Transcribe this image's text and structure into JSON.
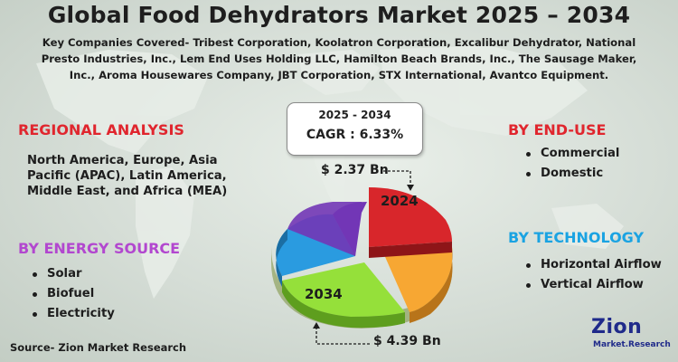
{
  "title": "Global Food Dehydrators Market 2025 – 2034",
  "companies": "Key Companies Covered- Tribest Corporation, Koolatron Corporation, Excalibur Dehydrator, National Presto Industries, Inc., Lem End Uses Holding LLC, Hamilton Beach Brands, Inc., The Sausage Maker, Inc., Aroma Housewares Company, JBT Corporation, STX International, Avantco Equipment.",
  "highlight": {
    "period": "2025 - 2034",
    "cagr": "CAGR : 6.33%"
  },
  "regional": {
    "heading": "REGIONAL ANALYSIS",
    "text": "North America, Europe, Asia Pacific (APAC), Latin America, Middle East, and Africa (MEA)"
  },
  "energy_source": {
    "heading": "BY ENERGY SOURCE",
    "items": [
      "Solar",
      "Biofuel",
      "Electricity"
    ]
  },
  "end_use": {
    "heading": "BY END-USE",
    "items": [
      "Commercial",
      "Domestic"
    ]
  },
  "technology": {
    "heading": "BY TECHNOLOGY",
    "items": [
      "Horizontal Airflow",
      "Vertical Airflow"
    ]
  },
  "market_value": {
    "start_label": "$ 2.37 Bn",
    "start_year": "2024",
    "end_label": "$ 4.39 Bn",
    "end_year": "2034"
  },
  "colors": {
    "red": "#e0262e",
    "purple": "#b247cf",
    "blue": "#1aa3e2",
    "slice_red": "#d8262b",
    "slice_orange": "#f7a733",
    "slice_green": "#95e03a",
    "slice_blue": "#2a9be0",
    "slice_purple": "#7236b6"
  },
  "source": "Source- Zion Market Research",
  "logo": {
    "name": "Zion",
    "sub": "Market.Research"
  }
}
